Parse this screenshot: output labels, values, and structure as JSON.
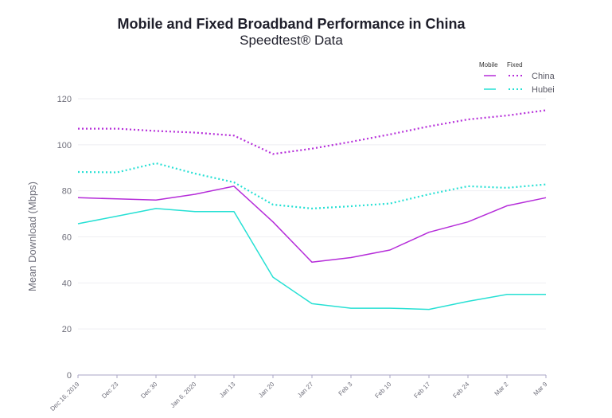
{
  "chart_data": {
    "type": "line",
    "title": "Mobile and Fixed Broadband Performance in China",
    "subtitle": "Speedtest® Data",
    "xlabel": "",
    "ylabel": "Mean Download (Mbps)",
    "ylim": [
      0,
      120
    ],
    "yticks": [
      "0",
      "20",
      "40",
      "60",
      "80",
      "100",
      "120"
    ],
    "grid": true,
    "legend_position": "top-right",
    "legend": {
      "mobile_header": "Mobile",
      "fixed_header": "Fixed",
      "rows": [
        "China",
        "Hubei"
      ]
    },
    "categories": [
      "Dec 16, 2019",
      "Dec 23",
      "Dec 30",
      "Jan 6, 2020",
      "Jan 13",
      "Jan 20",
      "Jan 27",
      "Feb 3",
      "Feb 10",
      "Feb 17",
      "Feb 24",
      "Mar 2",
      "Mar 9"
    ],
    "series": [
      {
        "name": "China Fixed",
        "region": "China",
        "type": "Fixed",
        "color": "#b52cd9",
        "dashed": true,
        "values": [
          107,
          107,
          106,
          105.3,
          104,
          96,
          98.3,
          101.3,
          104.5,
          108,
          111,
          112.7,
          115
        ]
      },
      {
        "name": "Hubei Fixed",
        "region": "Hubei",
        "type": "Fixed",
        "color": "#26e0d4",
        "dashed": true,
        "values": [
          88.2,
          88,
          92,
          87.5,
          83.7,
          74,
          72.3,
          73.3,
          74.5,
          78.5,
          82,
          81.3,
          82.8
        ]
      },
      {
        "name": "China Mobile",
        "region": "China",
        "type": "Mobile",
        "color": "#b52cd9",
        "dashed": false,
        "values": [
          77,
          76.5,
          76,
          78.5,
          82,
          66.5,
          49,
          51,
          54.3,
          62,
          66.5,
          73.5,
          77
        ]
      },
      {
        "name": "Hubei Mobile",
        "region": "Hubei",
        "type": "Mobile",
        "color": "#26e0d4",
        "dashed": false,
        "values": [
          65.7,
          69,
          72.3,
          71,
          71,
          42.5,
          31,
          29,
          29,
          28.5,
          32,
          35,
          35
        ]
      }
    ]
  }
}
